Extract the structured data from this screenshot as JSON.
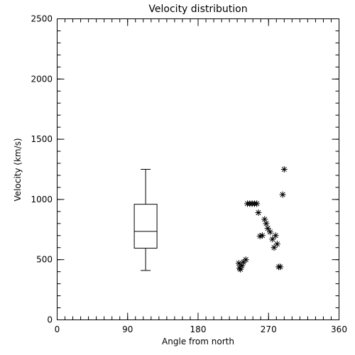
{
  "chart_data": {
    "type": "scatter",
    "title": "Velocity distribution",
    "xlabel": "Angle from north",
    "ylabel": "Velocity (km/s)",
    "xlim": [
      0,
      360
    ],
    "ylim": [
      0,
      2500
    ],
    "xticks": [
      0,
      90,
      180,
      270,
      360
    ],
    "xtick_labels": [
      "0",
      "90",
      "180",
      "270",
      "360"
    ],
    "yticks": [
      0,
      500,
      1000,
      1500,
      2000,
      2500
    ],
    "ytick_labels": [
      "0",
      "500",
      "1000",
      "1500",
      "2000",
      "2500"
    ],
    "x_minor_step": 10,
    "y_minor_step": 100,
    "marker": "asterisk",
    "points": [
      {
        "x": 232,
        "y": 470
      },
      {
        "x": 233,
        "y": 430
      },
      {
        "x": 234,
        "y": 420
      },
      {
        "x": 236,
        "y": 450
      },
      {
        "x": 238,
        "y": 480
      },
      {
        "x": 241,
        "y": 500
      },
      {
        "x": 243,
        "y": 965
      },
      {
        "x": 246,
        "y": 965
      },
      {
        "x": 249,
        "y": 965
      },
      {
        "x": 252,
        "y": 965
      },
      {
        "x": 255,
        "y": 965
      },
      {
        "x": 257,
        "y": 890
      },
      {
        "x": 259,
        "y": 695
      },
      {
        "x": 262,
        "y": 700
      },
      {
        "x": 265,
        "y": 835
      },
      {
        "x": 267,
        "y": 800
      },
      {
        "x": 269,
        "y": 760
      },
      {
        "x": 272,
        "y": 730
      },
      {
        "x": 275,
        "y": 670
      },
      {
        "x": 277,
        "y": 600
      },
      {
        "x": 279,
        "y": 700
      },
      {
        "x": 281,
        "y": 630
      },
      {
        "x": 283,
        "y": 440
      },
      {
        "x": 285,
        "y": 440
      },
      {
        "x": 288,
        "y": 1040
      },
      {
        "x": 290,
        "y": 1250
      }
    ],
    "boxplot": {
      "x": 113,
      "whisker_low": 410,
      "q1": 595,
      "median": 735,
      "q3": 960,
      "whisker_high": 1250
    }
  }
}
